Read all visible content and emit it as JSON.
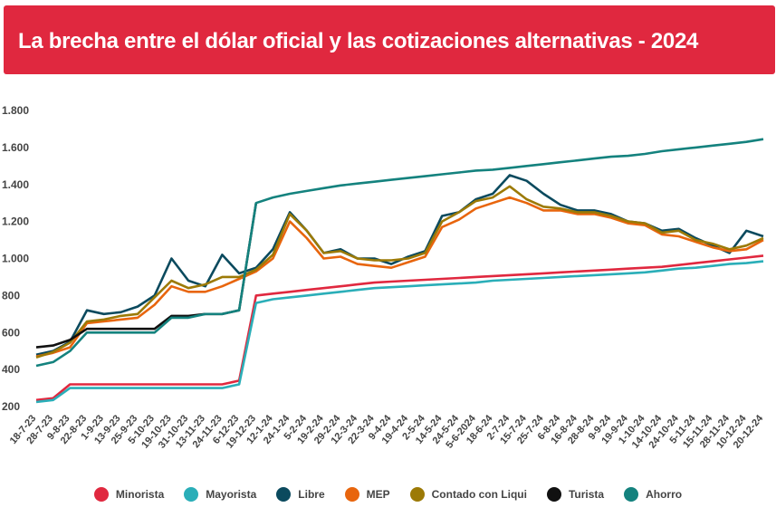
{
  "header": {
    "title": "La brecha entre el dólar oficial y las cotizaciones alternativas - 2024",
    "background": "#e0283f"
  },
  "chart_data": {
    "type": "line",
    "title": "La brecha entre el dólar oficial y las cotizaciones alternativas - 2024",
    "xlabel": "",
    "ylabel": "",
    "ylim": [
      200,
      1800
    ],
    "yticks": [
      200,
      400,
      600,
      800,
      1000,
      1200,
      1400,
      1600,
      1800
    ],
    "ytick_labels": [
      "200",
      "400",
      "600",
      "800",
      "1.000",
      "1.200",
      "1.400",
      "1.600",
      "1.800"
    ],
    "grid": false,
    "legend_position": "bottom",
    "x_ticks": [
      "18-7-23",
      "28-7-23",
      "9-8-23",
      "22-8-23",
      "1-9-23",
      "13-9-23",
      "25-9-23",
      "5-10-23",
      "19-10-23",
      "31-10-23",
      "13-11-23",
      "24-11-23",
      "6-12-23",
      "19-12-23",
      "12-1-24",
      "24-1-24",
      "5-2-24",
      "19-2-24",
      "29-2-24",
      "12-3-24",
      "22-3-24",
      "9-4-24",
      "19-4-24",
      "2-5-24",
      "14-5-24",
      "24-5-24",
      "5-6-2024",
      "18-6-24",
      "2-7-24",
      "15-7-24",
      "25-7-24",
      "6-8-24",
      "16-8-24",
      "28-8-24",
      "9-9-24",
      "19-9-24",
      "1-10-24",
      "14-10-24",
      "24-10-24",
      "5-11-24",
      "15-11-24",
      "28-11-24",
      "10-12-24",
      "20-12-24"
    ],
    "series": [
      {
        "name": "Minorista",
        "color": "#e0283f",
        "values": [
          235,
          245,
          320,
          320,
          320,
          320,
          320,
          320,
          320,
          320,
          320,
          320,
          340,
          800,
          810,
          820,
          830,
          840,
          850,
          860,
          870,
          875,
          880,
          885,
          890,
          895,
          900,
          905,
          910,
          915,
          920,
          925,
          930,
          935,
          940,
          945,
          950,
          955,
          965,
          975,
          985,
          995,
          1005,
          1015
        ]
      },
      {
        "name": "Mayorista",
        "color": "#2aaeb8",
        "values": [
          225,
          235,
          300,
          300,
          300,
          300,
          300,
          300,
          300,
          300,
          300,
          300,
          320,
          760,
          780,
          790,
          800,
          810,
          820,
          830,
          840,
          845,
          850,
          855,
          860,
          865,
          870,
          880,
          885,
          890,
          895,
          900,
          905,
          910,
          915,
          920,
          925,
          935,
          945,
          950,
          960,
          970,
          975,
          985
        ]
      },
      {
        "name": "Libre",
        "color": "#0b4a5e",
        "values": [
          480,
          500,
          550,
          720,
          700,
          710,
          740,
          800,
          1000,
          880,
          850,
          1020,
          920,
          950,
          1050,
          1250,
          1150,
          1030,
          1050,
          1000,
          1000,
          970,
          1010,
          1040,
          1230,
          1250,
          1320,
          1350,
          1450,
          1420,
          1350,
          1290,
          1260,
          1260,
          1240,
          1200,
          1190,
          1150,
          1160,
          1110,
          1070,
          1030,
          1150,
          1120
        ]
      },
      {
        "name": "MEP",
        "color": "#e8650d",
        "values": [
          470,
          490,
          520,
          650,
          660,
          670,
          680,
          750,
          850,
          820,
          820,
          850,
          890,
          930,
          1000,
          1200,
          1110,
          1000,
          1010,
          970,
          960,
          950,
          980,
          1010,
          1170,
          1210,
          1270,
          1300,
          1330,
          1300,
          1260,
          1260,
          1240,
          1240,
          1220,
          1190,
          1180,
          1130,
          1120,
          1090,
          1060,
          1040,
          1050,
          1100
        ]
      },
      {
        "name": "Contado con Liqui",
        "color": "#9c7a06",
        "values": [
          465,
          495,
          545,
          660,
          670,
          690,
          700,
          790,
          880,
          840,
          860,
          900,
          900,
          940,
          1020,
          1240,
          1150,
          1030,
          1040,
          1000,
          990,
          990,
          1000,
          1030,
          1200,
          1250,
          1310,
          1330,
          1390,
          1320,
          1280,
          1270,
          1250,
          1250,
          1230,
          1200,
          1190,
          1140,
          1150,
          1100,
          1080,
          1050,
          1070,
          1110
        ]
      },
      {
        "name": "Turista",
        "color": "#111111",
        "values": [
          520,
          530,
          560,
          620,
          620,
          620,
          620,
          620,
          690,
          690,
          700,
          700,
          720,
          1300,
          null,
          null,
          null,
          null,
          null,
          null,
          null,
          null,
          null,
          null,
          null,
          null,
          null,
          null,
          null,
          null,
          null,
          null,
          null,
          null,
          null,
          null,
          null,
          null,
          null,
          null,
          null,
          null,
          null,
          null
        ]
      },
      {
        "name": "Ahorro",
        "color": "#14827e",
        "values": [
          420,
          440,
          500,
          600,
          600,
          600,
          600,
          600,
          680,
          680,
          700,
          700,
          720,
          1300,
          1330,
          1350,
          1365,
          1380,
          1395,
          1405,
          1415,
          1425,
          1435,
          1445,
          1455,
          1465,
          1475,
          1480,
          1490,
          1500,
          1510,
          1520,
          1530,
          1540,
          1550,
          1555,
          1565,
          1580,
          1590,
          1600,
          1610,
          1620,
          1630,
          1645
        ]
      }
    ]
  }
}
